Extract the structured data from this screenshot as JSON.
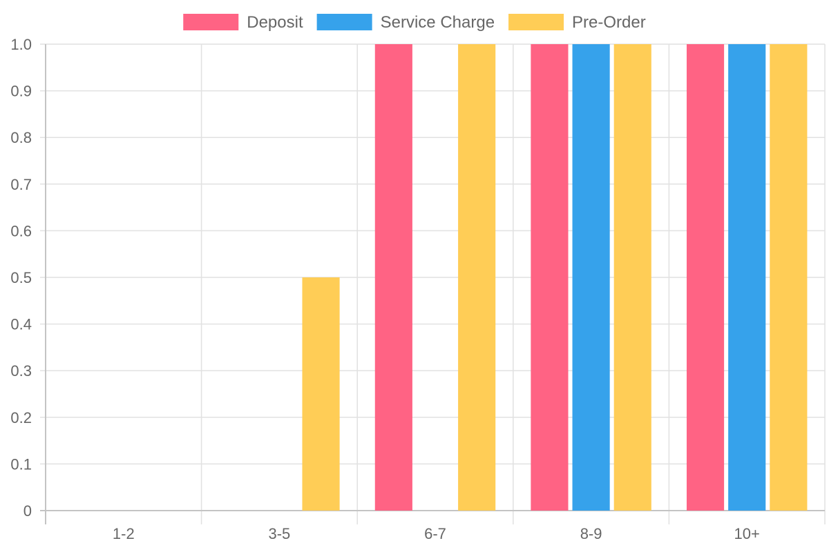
{
  "chart_data": {
    "type": "bar",
    "categories": [
      "1-2",
      "3-5",
      "6-7",
      "8-9",
      "10+"
    ],
    "series": [
      {
        "name": "Deposit",
        "color": "#ff6384",
        "values": [
          0,
          0,
          1,
          1,
          1
        ]
      },
      {
        "name": "Service Charge",
        "color": "#36a2eb",
        "values": [
          0,
          0,
          0,
          1,
          1
        ]
      },
      {
        "name": "Pre-Order",
        "color": "#ffcd56",
        "values": [
          0,
          0.5,
          1,
          1,
          1
        ]
      }
    ],
    "y_ticks": [
      "0",
      "0.1",
      "0.2",
      "0.3",
      "0.4",
      "0.5",
      "0.6",
      "0.7",
      "0.8",
      "0.9",
      "1.0"
    ],
    "ylim": [
      0,
      1
    ],
    "grid": true,
    "legend_position": "top-center",
    "title": "",
    "xlabel": "",
    "ylabel": ""
  }
}
